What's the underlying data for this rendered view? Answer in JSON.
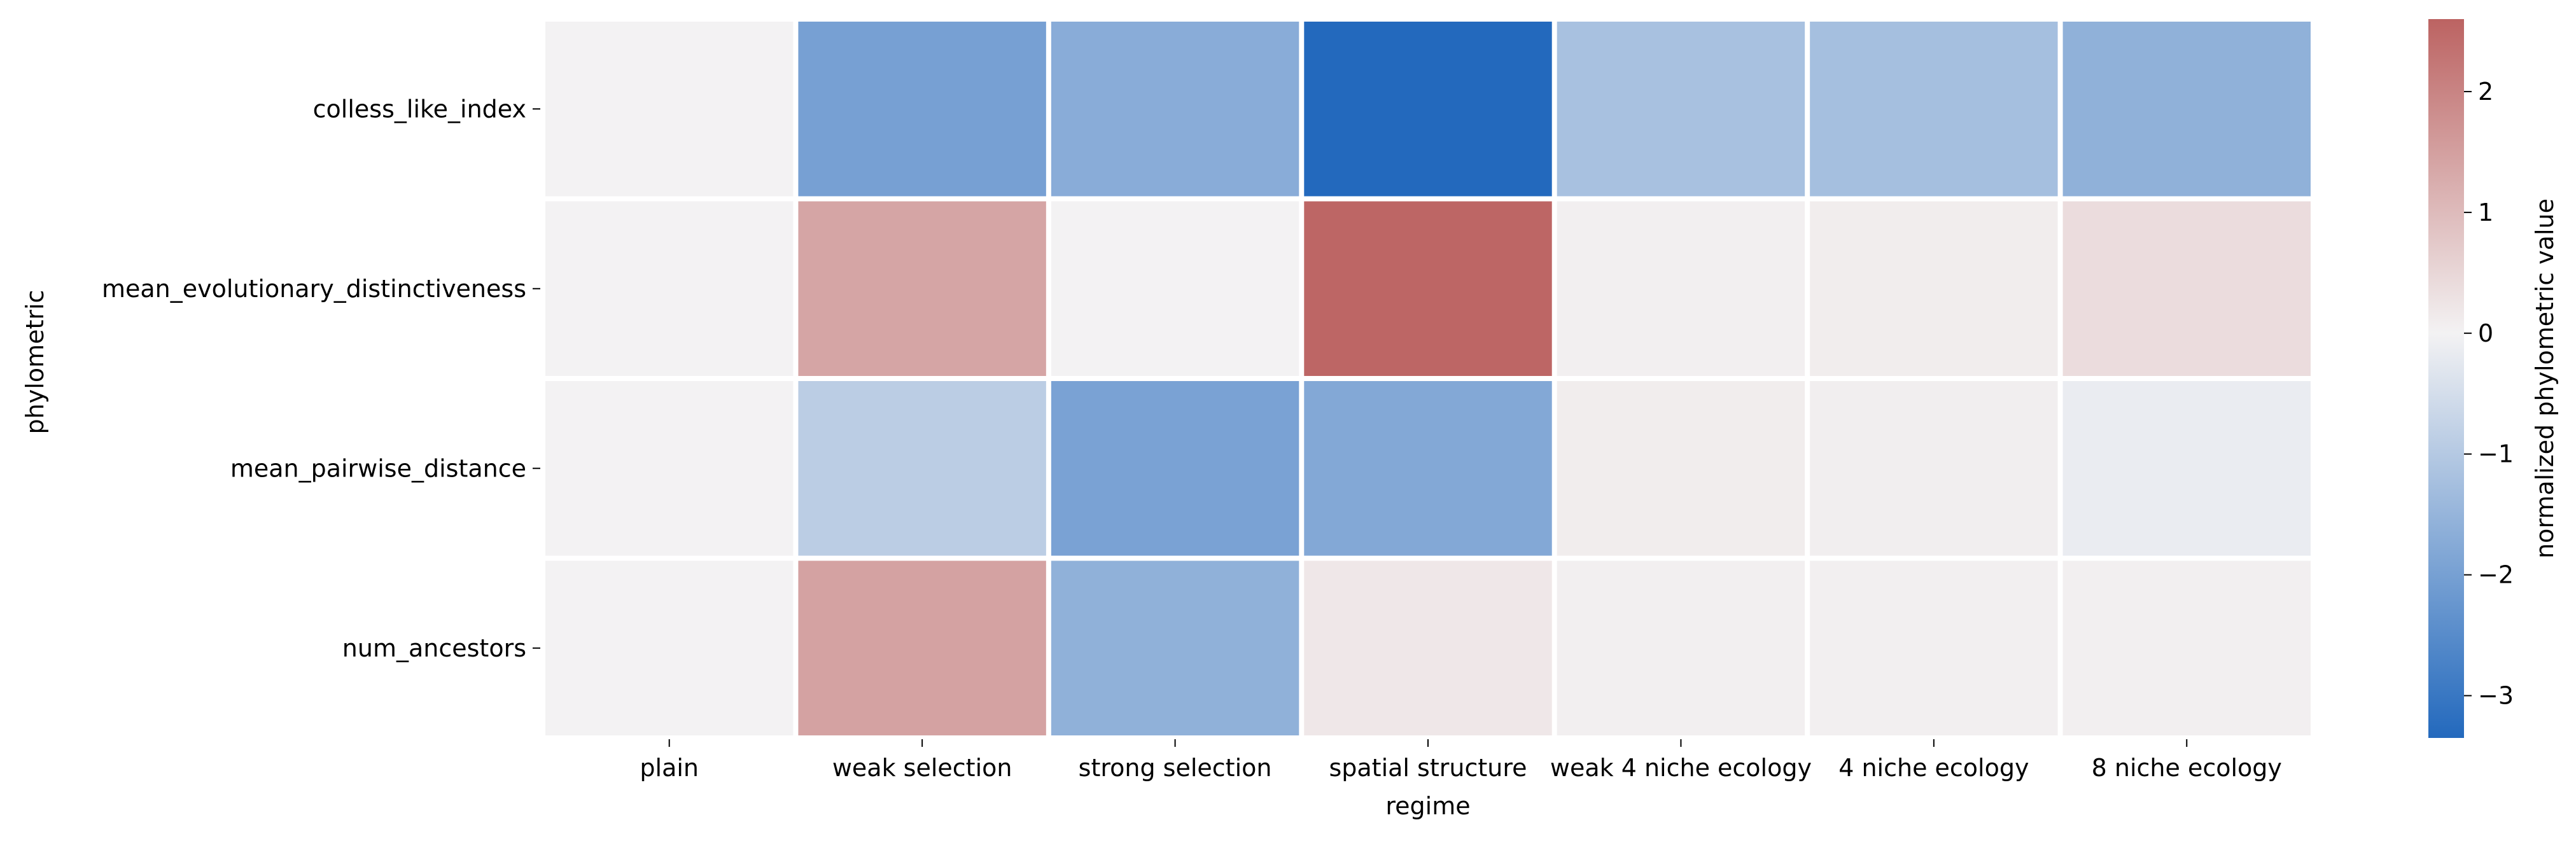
{
  "chart_data": {
    "type": "heatmap",
    "xlabel": "regime",
    "ylabel": "phylometric",
    "x_categories": [
      "plain",
      "weak selection",
      "strong selection",
      "spatial structure",
      "weak 4 niche ecology",
      "4 niche ecology",
      "8 niche ecology"
    ],
    "y_categories": [
      "colless_like_index",
      "mean_evolutionary_distinctiveness",
      "mean_pairwise_distance",
      "num_ancestors"
    ],
    "values": [
      [
        0.0,
        -2.0,
        -1.7,
        -3.35,
        -1.2,
        -1.25,
        -1.6
      ],
      [
        0.0,
        1.4,
        0.0,
        2.55,
        0.05,
        0.1,
        0.4
      ],
      [
        0.0,
        -0.9,
        -1.95,
        -1.8,
        0.1,
        0.08,
        -0.15
      ],
      [
        0.0,
        1.45,
        -1.6,
        0.2,
        0.05,
        0.05,
        0.06
      ]
    ],
    "colorbar": {
      "label": "normalized phylometric value",
      "vmin": -3.35,
      "vmax": 2.6,
      "ticks": [
        -3,
        -2,
        -1,
        0,
        1,
        2
      ],
      "tick_labels": [
        "−3",
        "−2",
        "−1",
        "0",
        "1",
        "2"
      ],
      "colors": {
        "low": "#2369bd",
        "mid": "#f3f2f3",
        "high": "#bc6362"
      }
    },
    "grid": false,
    "cell_separator_color": "#ffffff"
  }
}
